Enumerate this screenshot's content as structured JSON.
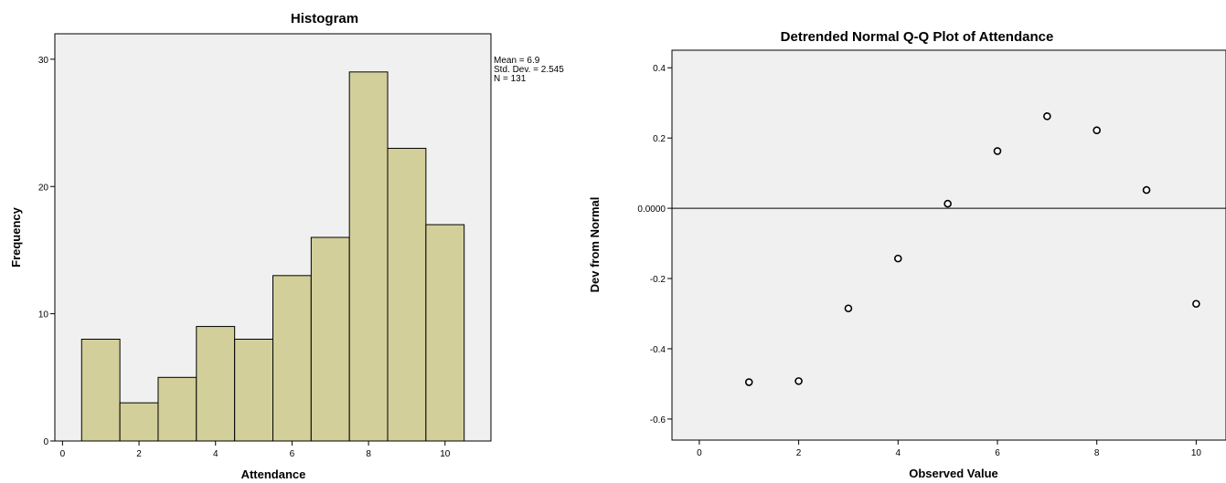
{
  "chart_data": [
    {
      "type": "bar",
      "title": "Histogram",
      "xlabel": "Attendance",
      "ylabel": "Frequency",
      "bins": [
        1,
        2,
        3,
        4,
        5,
        6,
        7,
        8,
        9,
        10
      ],
      "values": [
        8,
        3,
        5,
        9,
        8,
        13,
        16,
        29,
        23,
        17
      ],
      "xlim": [
        -0.2,
        11.2
      ],
      "ylim": [
        0,
        32
      ],
      "xticks": [
        0,
        2,
        4,
        6,
        8,
        10
      ],
      "yticks": [
        0,
        10,
        20,
        30
      ],
      "stats": [
        "Mean = 6.9",
        "Std. Dev. = 2.545",
        "N = 131"
      ],
      "bar_color": "#d3cf9a",
      "background": "#f0f0f0"
    },
    {
      "type": "scatter",
      "title": "Detrended Normal Q-Q Plot of Attendance",
      "xlabel": "Observed Value",
      "ylabel": "Dev from Normal",
      "x": [
        1,
        2,
        3,
        4,
        5,
        6,
        7,
        8,
        9,
        10
      ],
      "y": [
        -0.495,
        -0.492,
        -0.285,
        -0.143,
        0.013,
        0.163,
        0.262,
        0.222,
        0.052,
        -0.272
      ],
      "xlim": [
        -0.55,
        10.6
      ],
      "ylim": [
        -0.66,
        0.45
      ],
      "xticks": [
        0,
        2,
        4,
        6,
        8,
        10
      ],
      "yticks": [
        0.4,
        0.2,
        0.0,
        -0.2,
        -0.4,
        -0.6
      ],
      "ytick_labels": [
        "0.4",
        "0.2",
        "0.0000",
        "-0.2",
        "-0.4",
        "-0.6"
      ],
      "reference_line": 0,
      "background": "#f0f0f0"
    }
  ]
}
